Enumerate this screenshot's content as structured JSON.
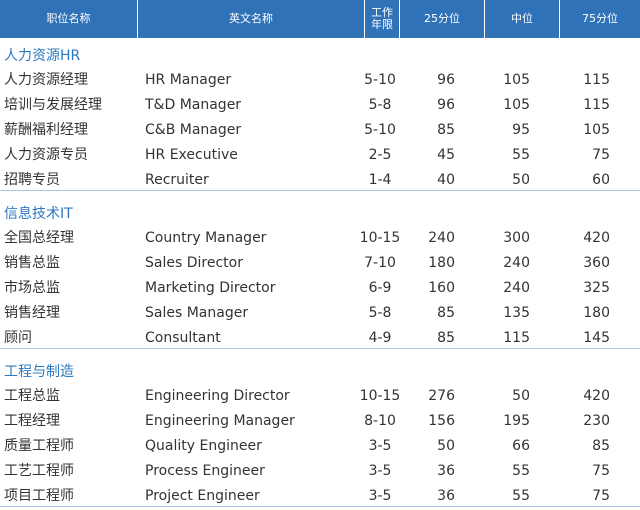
{
  "table": {
    "header": [
      "职位名称",
      "英文名称",
      "工作年限",
      "25分位",
      "中位",
      "75分位"
    ],
    "sections": [
      {
        "title": "人力资源HR",
        "rows": [
          [
            "人力资源经理",
            "HR Manager",
            "5-10",
            96,
            105,
            115
          ],
          [
            "培训与发展经理",
            "T&D Manager",
            "5-8",
            96,
            105,
            115
          ],
          [
            "薪酬福利经理",
            "C&B Manager",
            "5-10",
            85,
            95,
            105
          ],
          [
            "人力资源专员",
            "HR Executive",
            "2-5",
            45,
            55,
            75
          ],
          [
            "招聘专员",
            "Recruiter",
            "1-4",
            40,
            50,
            60
          ]
        ]
      },
      {
        "title": "信息技术IT",
        "rows": [
          [
            "全国总经理",
            "Country Manager",
            "10-15",
            240,
            300,
            420
          ],
          [
            "销售总监",
            "Sales Director",
            "7-10",
            180,
            240,
            360
          ],
          [
            "市场总监",
            "Marketing Director",
            "6-9",
            160,
            240,
            325
          ],
          [
            "销售经理",
            "Sales Manager",
            "5-8",
            85,
            135,
            180
          ],
          [
            "顾问",
            "Consultant",
            "4-9",
            85,
            115,
            145
          ]
        ]
      },
      {
        "title": "工程与制造",
        "rows": [
          [
            "工程总监",
            "Engineering Director",
            "10-15",
            276,
            50,
            420
          ],
          [
            "工程经理",
            "Engineering Manager",
            "8-10",
            156,
            195,
            230
          ],
          [
            "质量工程师",
            "Quality Engineer",
            "3-5",
            50,
            66,
            85
          ],
          [
            "工艺工程师",
            "Process Engineer",
            "3-5",
            36,
            55,
            75
          ],
          [
            "项目工程师",
            "Project Engineer",
            "3-5",
            36,
            55,
            75
          ]
        ]
      }
    ]
  }
}
